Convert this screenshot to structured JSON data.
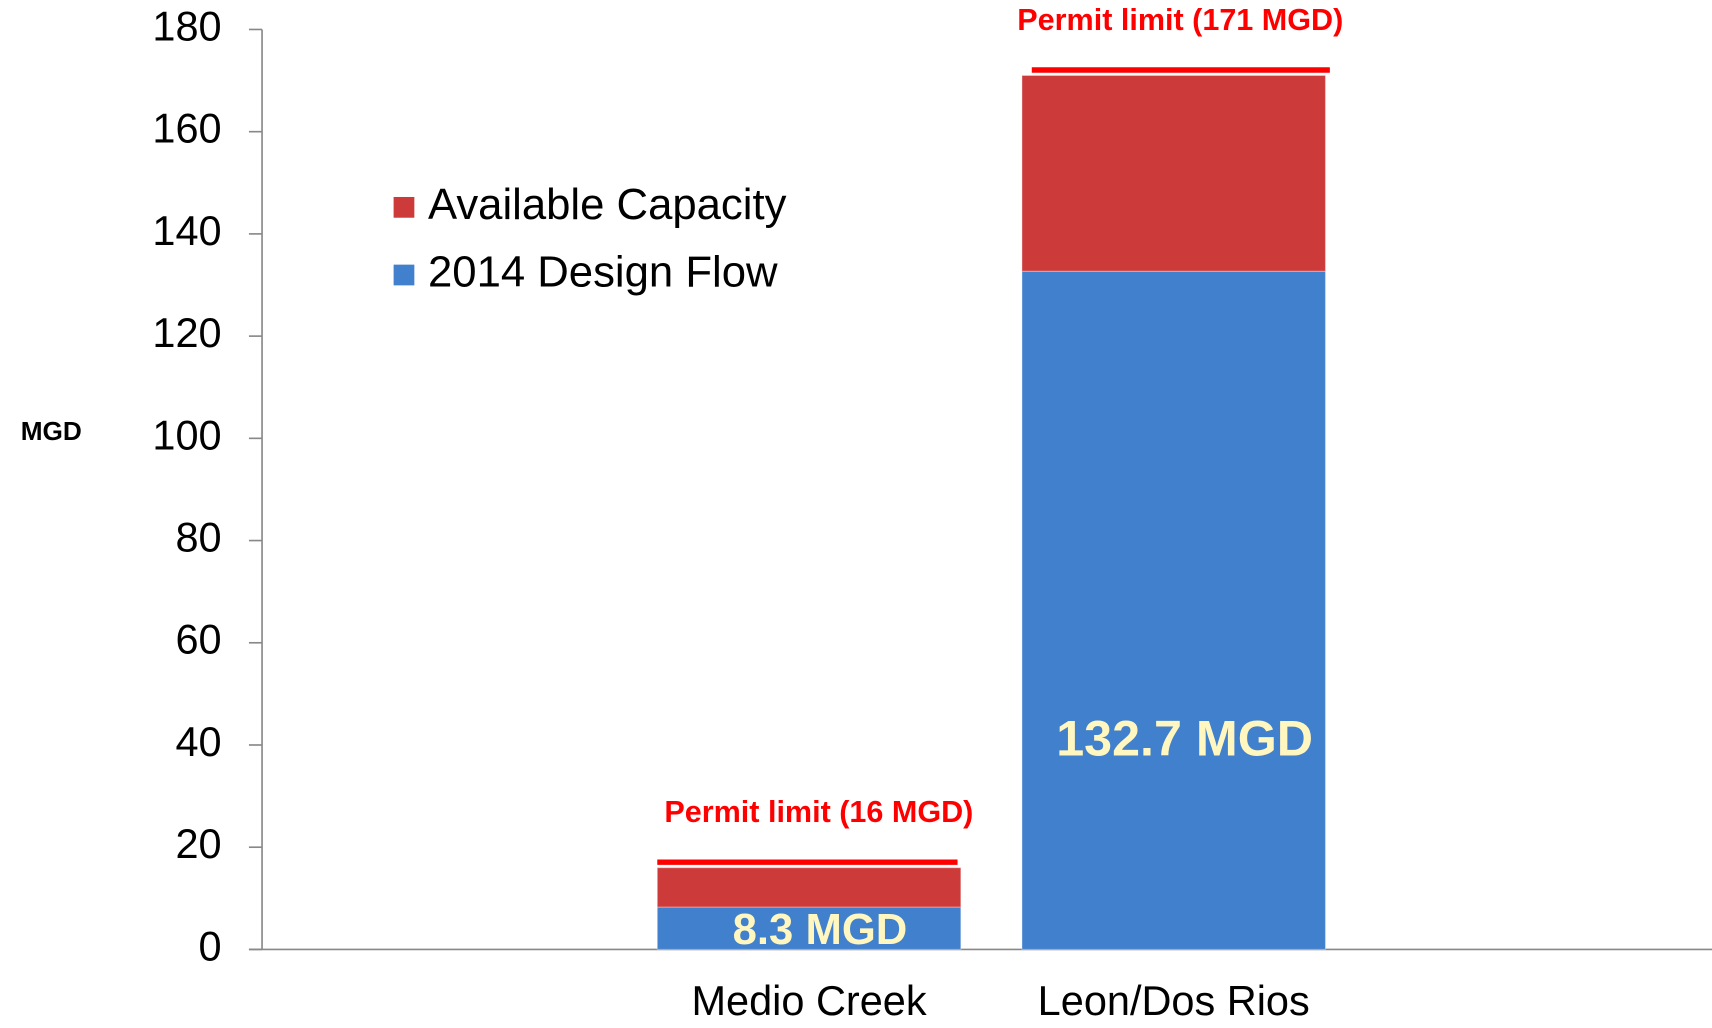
{
  "chart_data": {
    "type": "stacked_bar",
    "y_label": "MGD",
    "categories": [
      "Medio Creek",
      "Leon/Dos Rios"
    ],
    "series": [
      {
        "name": "2014 Design Flow",
        "color": "#4080cc",
        "values": [
          8.3,
          132.7
        ],
        "value_labels": [
          "8.3 MGD",
          "132.7 MGD"
        ]
      },
      {
        "name": "Available Capacity",
        "color": "#cc3a3a",
        "values": [
          7.7,
          38.3
        ]
      }
    ],
    "annotations": [
      {
        "value": 16,
        "label": "Permit limit (16 MGD)"
      },
      {
        "value": 171,
        "label": "Permit limit (171 MGD)"
      }
    ],
    "annotation_color": "#ff0000",
    "value_label_color": "#fff6c0",
    "ylim": [
      0,
      180
    ],
    "yticks": [
      0,
      20,
      40,
      60,
      80,
      100,
      120,
      140,
      160,
      180
    ],
    "grid": false
  }
}
